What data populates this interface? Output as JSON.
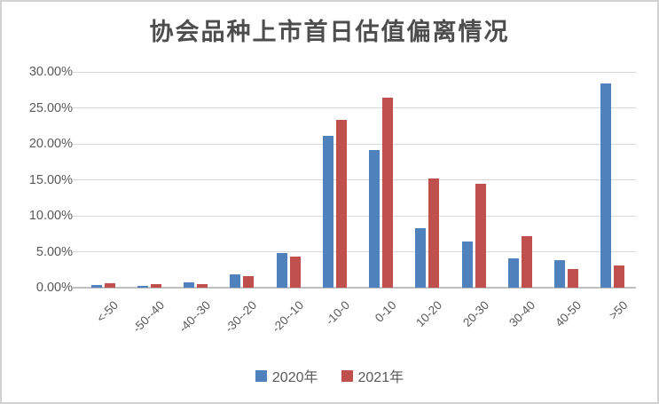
{
  "chart_data": {
    "type": "bar",
    "title": "协会品种上市首日估值偏离情况",
    "categories": [
      "<-50",
      "-50--40",
      "-40--30",
      "-30--20",
      "-20--10",
      "-10-0",
      "0-10",
      "10-20",
      "20-30",
      "30-40",
      "40-50",
      ">50"
    ],
    "series": [
      {
        "name": "2020年",
        "color": "#4F81BD",
        "values": [
          0.35,
          0.3,
          0.8,
          1.85,
          4.8,
          21.1,
          19.1,
          8.3,
          6.45,
          4.1,
          3.85,
          28.35
        ]
      },
      {
        "name": "2021年",
        "color": "#C0504D",
        "values": [
          0.65,
          0.5,
          0.55,
          1.55,
          4.3,
          23.3,
          26.45,
          15.2,
          14.4,
          7.2,
          2.55,
          3.1
        ]
      }
    ],
    "ylabel": "",
    "xlabel": "",
    "ylim": [
      0,
      30
    ],
    "y_tick_step": 5,
    "y_tick_labels": [
      "0.00%",
      "5.00%",
      "10.00%",
      "15.00%",
      "20.00%",
      "25.00%",
      "30.00%"
    ],
    "grid": true,
    "legend_position": "bottom",
    "colors": {
      "gridline": "#d9d9d9",
      "axis_line": "#c0c0c0",
      "tick_text": "#595959",
      "title_text": "#4d4d4d"
    }
  }
}
